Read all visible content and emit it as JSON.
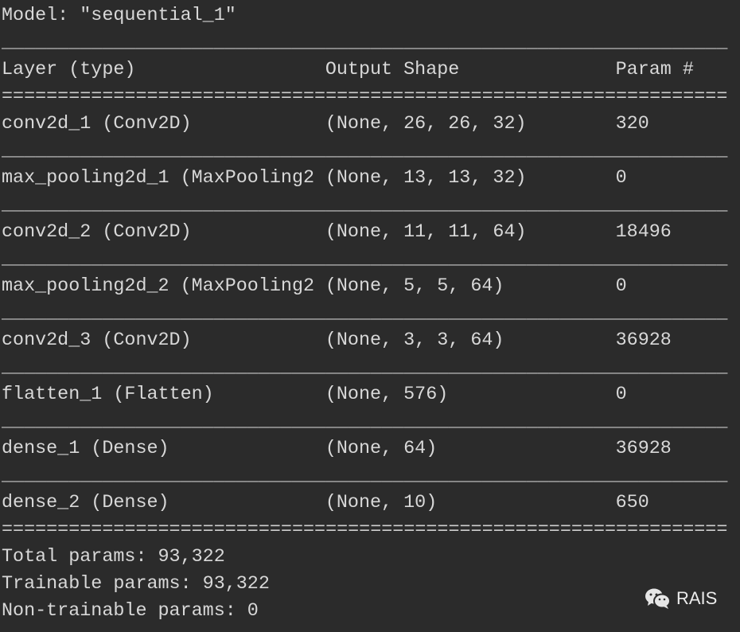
{
  "model_title": "Model: \"sequential_1\"",
  "columns": {
    "name": 0,
    "shape": 29,
    "param": 55,
    "line_length": 65
  },
  "header": [
    "Layer (type)",
    "Output Shape",
    "Param #"
  ],
  "rows": [
    [
      "conv2d_1 (Conv2D)",
      "(None, 26, 26, 32)",
      "320"
    ],
    [
      "max_pooling2d_1 (MaxPooling2",
      "(None, 13, 13, 32)",
      "0"
    ],
    [
      "conv2d_2 (Conv2D)",
      "(None, 11, 11, 64)",
      "18496"
    ],
    [
      "max_pooling2d_2 (MaxPooling2",
      "(None, 5, 5, 64)",
      "0"
    ],
    [
      "conv2d_3 (Conv2D)",
      "(None, 3, 3, 64)",
      "36928"
    ],
    [
      "flatten_1 (Flatten)",
      "(None, 576)",
      "0"
    ],
    [
      "dense_1 (Dense)",
      "(None, 64)",
      "36928"
    ],
    [
      "dense_2 (Dense)",
      "(None, 10)",
      "650"
    ]
  ],
  "summary": {
    "total": "Total params: 93,322",
    "trainable": "Trainable params: 93,322",
    "non_trainable": "Non-trainable params: 0"
  },
  "watermark": {
    "icon": "wechat-icon",
    "label": "RAIS"
  },
  "colors": {
    "background": "#2b2b2b",
    "text": "#d8d8d8"
  }
}
